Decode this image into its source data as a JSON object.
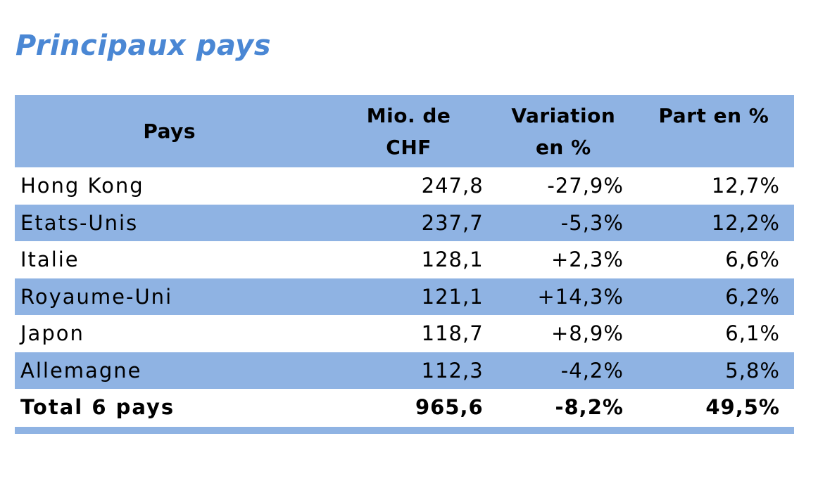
{
  "title": "Principaux pays",
  "colors": {
    "title_blue": "#4A87D4",
    "band_blue": "#8FB3E3",
    "text": "#000000"
  },
  "table": {
    "header": {
      "pays": "Pays",
      "mio_line1": "Mio. de",
      "mio_line2": "CHF",
      "variation_line1": "Variation",
      "variation_line2": "en %",
      "part": "Part en %"
    },
    "rows": [
      {
        "pays": "Hong Kong",
        "mio": "247,8",
        "variation": "-27,9%",
        "part": "12,7%"
      },
      {
        "pays": "Etats-Unis",
        "mio": "237,7",
        "variation": "-5,3%",
        "part": "12,2%"
      },
      {
        "pays": "Italie",
        "mio": "128,1",
        "variation": "+2,3%",
        "part": "6,6%"
      },
      {
        "pays": "Royaume-Uni",
        "mio": "121,1",
        "variation": "+14,3%",
        "part": "6,2%"
      },
      {
        "pays": "Japon",
        "mio": "118,7",
        "variation": "+8,9%",
        "part": "6,1%"
      },
      {
        "pays": "Allemagne",
        "mio": "112,3",
        "variation": "-4,2%",
        "part": "5,8%"
      }
    ],
    "total": {
      "pays": "Total 6 pays",
      "mio": "965,6",
      "variation": "-8,2%",
      "part": "49,5%"
    }
  }
}
